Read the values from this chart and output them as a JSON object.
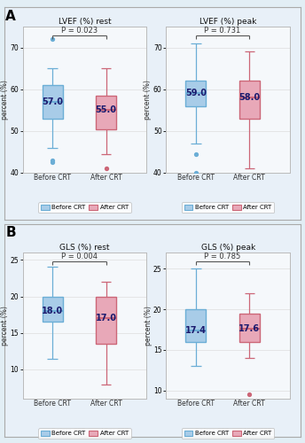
{
  "panels": [
    {
      "title": "LVEF (%) rest",
      "pvalue": "P = 0.023",
      "ylabel": "percent (%)",
      "ylim": [
        40,
        75
      ],
      "yticks": [
        40,
        50,
        60,
        70
      ],
      "before": {
        "median": 57.0,
        "q1": 53.0,
        "q3": 61.0,
        "whisker_low": 46.0,
        "whisker_high": 65.0,
        "outliers": [
          42.5,
          43.0,
          72.0
        ]
      },
      "after": {
        "median": 55.0,
        "q1": 50.5,
        "q3": 58.5,
        "whisker_low": 44.5,
        "whisker_high": 65.0,
        "outliers": [
          41.0
        ]
      }
    },
    {
      "title": "LVEF (%) peak",
      "pvalue": "P = 0.731",
      "ylabel": "percent (%)",
      "ylim": [
        40,
        75
      ],
      "yticks": [
        40,
        50,
        60,
        70
      ],
      "before": {
        "median": 59.0,
        "q1": 56.0,
        "q3": 62.0,
        "whisker_low": 47.0,
        "whisker_high": 71.0,
        "outliers": [
          40.0,
          44.5
        ]
      },
      "after": {
        "median": 58.0,
        "q1": 53.0,
        "q3": 62.0,
        "whisker_low": 41.0,
        "whisker_high": 69.0,
        "outliers": []
      }
    },
    {
      "title": "GLS (%) rest",
      "pvalue": "P = 0.004",
      "ylabel": "percent (%)",
      "ylim": [
        6,
        26
      ],
      "yticks": [
        10,
        15,
        20,
        25
      ],
      "before": {
        "median": 18.0,
        "q1": 16.5,
        "q3": 20.0,
        "whisker_low": 11.5,
        "whisker_high": 24.0,
        "outliers": []
      },
      "after": {
        "median": 17.0,
        "q1": 13.5,
        "q3": 20.0,
        "whisker_low": 8.0,
        "whisker_high": 22.0,
        "outliers": []
      }
    },
    {
      "title": "GLS (%) peak",
      "pvalue": "P = 0.785",
      "ylabel": "percent (%)",
      "ylim": [
        9,
        27
      ],
      "yticks": [
        10,
        15,
        20,
        25
      ],
      "before": {
        "median": 17.4,
        "q1": 16.0,
        "q3": 20.0,
        "whisker_low": 13.0,
        "whisker_high": 25.0,
        "outliers": []
      },
      "after": {
        "median": 17.6,
        "q1": 16.0,
        "q3": 19.5,
        "whisker_low": 14.0,
        "whisker_high": 22.0,
        "outliers": [
          9.5
        ]
      }
    }
  ],
  "blue_edge": "#6BAED6",
  "pink_edge": "#CC6677",
  "blue_fill": "#A8CCE8",
  "pink_fill": "#E8A8B8",
  "outer_bg": "#E2EEF5",
  "section_bg": "#E8F0F8",
  "panel_bg": "#F5F8FB",
  "legend_before": "Before CRT",
  "legend_after": "After CRT",
  "label_A": "A",
  "label_B": "B",
  "box_width": 0.38
}
